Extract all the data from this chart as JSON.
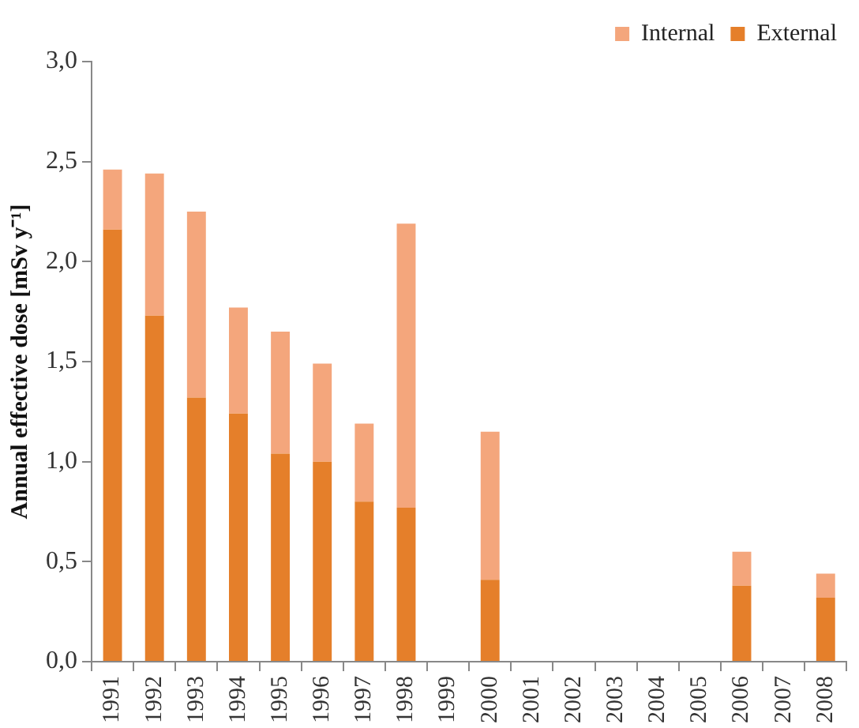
{
  "chart_data": {
    "type": "bar",
    "ylabel": "Annual effective dose [mSv y⁻¹]",
    "categories": [
      "1991",
      "1992",
      "1993",
      "1994",
      "1995",
      "1996",
      "1997",
      "1998",
      "1999",
      "2000",
      "2001",
      "2002",
      "2003",
      "2004",
      "2005",
      "2006",
      "2007",
      "2008"
    ],
    "stacked": true,
    "legend": "top right",
    "grid": false,
    "ylim": [
      0,
      3
    ],
    "yticks": [
      {
        "value": 0,
        "label": "0,0"
      },
      {
        "value": 0.5,
        "label": "0,5"
      },
      {
        "value": 1,
        "label": "1,0"
      },
      {
        "value": 1.5,
        "label": "1,5"
      },
      {
        "value": 2,
        "label": "2,0"
      },
      {
        "value": 2.5,
        "label": "2,5"
      },
      {
        "value": 3,
        "label": "3,0"
      }
    ],
    "series": [
      {
        "name": "External",
        "color": "#e57f2a",
        "values": [
          2.16,
          1.73,
          1.32,
          1.24,
          1.04,
          1.0,
          0.8,
          0.77,
          null,
          0.41,
          null,
          null,
          null,
          null,
          null,
          0.38,
          null,
          0.32
        ]
      },
      {
        "name": "Internal",
        "color": "#f4a67c",
        "values": [
          0.3,
          0.71,
          0.93,
          0.53,
          0.61,
          0.49,
          0.39,
          1.42,
          null,
          0.74,
          null,
          null,
          null,
          null,
          null,
          0.17,
          null,
          0.12
        ]
      }
    ]
  }
}
